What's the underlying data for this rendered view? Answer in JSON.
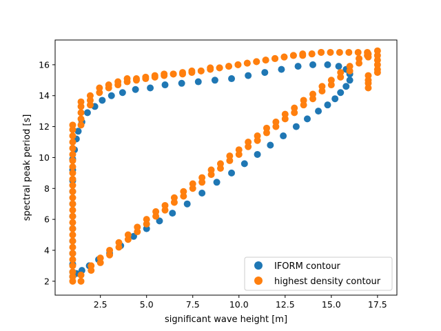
{
  "chart_data": {
    "type": "scatter",
    "xlabel": "significant wave height [m]",
    "ylabel": "spectral peak period [s]",
    "xlim": [
      0.05,
      18.55
    ],
    "ylim": [
      1.1,
      17.6
    ],
    "xticks": [
      "2.5",
      "5.0",
      "7.5",
      "10.0",
      "12.5",
      "15.0",
      "17.5"
    ],
    "yticks": [
      "2",
      "4",
      "6",
      "8",
      "10",
      "12",
      "14",
      "16"
    ],
    "legend_position": "lower-right",
    "series": [
      {
        "name": "IFORM contour",
        "color": "#1f77b4",
        "points": [
          [
            1.0,
            2.3
          ],
          [
            1.2,
            2.5
          ],
          [
            1.5,
            2.7
          ],
          [
            1.9,
            3.0
          ],
          [
            2.4,
            3.4
          ],
          [
            3.0,
            3.8
          ],
          [
            3.6,
            4.3
          ],
          [
            4.3,
            4.9
          ],
          [
            5.0,
            5.4
          ],
          [
            5.7,
            5.9
          ],
          [
            6.4,
            6.4
          ],
          [
            7.2,
            7.0
          ],
          [
            8.0,
            7.7
          ],
          [
            8.8,
            8.4
          ],
          [
            9.6,
            9.0
          ],
          [
            10.3,
            9.6
          ],
          [
            11.0,
            10.2
          ],
          [
            11.7,
            10.8
          ],
          [
            12.4,
            11.4
          ],
          [
            13.1,
            12.0
          ],
          [
            13.7,
            12.5
          ],
          [
            14.3,
            13.0
          ],
          [
            14.8,
            13.4
          ],
          [
            15.2,
            13.8
          ],
          [
            15.5,
            14.2
          ],
          [
            15.8,
            14.6
          ],
          [
            16.0,
            15.0
          ],
          [
            16.0,
            15.4
          ],
          [
            15.8,
            15.7
          ],
          [
            15.4,
            15.9
          ],
          [
            14.8,
            16.0
          ],
          [
            14.0,
            16.0
          ],
          [
            13.2,
            15.9
          ],
          [
            12.3,
            15.7
          ],
          [
            11.4,
            15.5
          ],
          [
            10.5,
            15.3
          ],
          [
            9.6,
            15.1
          ],
          [
            8.7,
            15.0
          ],
          [
            7.8,
            14.9
          ],
          [
            6.9,
            14.8
          ],
          [
            6.0,
            14.7
          ],
          [
            5.2,
            14.5
          ],
          [
            4.4,
            14.4
          ],
          [
            3.7,
            14.2
          ],
          [
            3.1,
            14.0
          ],
          [
            2.6,
            13.7
          ],
          [
            2.2,
            13.3
          ],
          [
            1.8,
            12.9
          ],
          [
            1.5,
            12.3
          ],
          [
            1.3,
            11.7
          ],
          [
            1.2,
            11.2
          ],
          [
            1.1,
            10.5
          ],
          [
            1.0,
            9.9
          ],
          [
            1.0,
            9.2
          ],
          [
            1.0,
            8.5
          ],
          [
            1.0,
            7.8
          ],
          [
            1.0,
            7.0
          ],
          [
            1.0,
            6.2
          ],
          [
            1.0,
            5.4
          ],
          [
            1.0,
            4.6
          ],
          [
            1.0,
            3.8
          ],
          [
            1.0,
            3.1
          ],
          [
            1.0,
            2.6
          ]
        ]
      },
      {
        "name": "highest density contour",
        "color": "#ff7f0e",
        "points": [
          [
            1.0,
            2.0
          ],
          [
            1.0,
            2.3
          ],
          [
            1.0,
            2.6
          ],
          [
            1.0,
            3.0
          ],
          [
            1.0,
            3.4
          ],
          [
            1.0,
            3.8
          ],
          [
            1.0,
            4.2
          ],
          [
            1.0,
            4.6
          ],
          [
            1.0,
            5.0
          ],
          [
            1.0,
            5.4
          ],
          [
            1.0,
            5.8
          ],
          [
            1.0,
            6.2
          ],
          [
            1.0,
            6.6
          ],
          [
            1.0,
            7.0
          ],
          [
            1.0,
            7.4
          ],
          [
            1.0,
            7.8
          ],
          [
            1.0,
            8.2
          ],
          [
            1.0,
            8.6
          ],
          [
            1.0,
            9.0
          ],
          [
            1.0,
            9.4
          ],
          [
            1.0,
            9.8
          ],
          [
            1.0,
            10.2
          ],
          [
            1.0,
            10.6
          ],
          [
            1.0,
            11.0
          ],
          [
            1.0,
            11.4
          ],
          [
            1.0,
            11.8
          ],
          [
            1.0,
            12.1
          ],
          [
            1.45,
            2.0
          ],
          [
            1.45,
            2.4
          ],
          [
            2.0,
            2.7
          ],
          [
            2.0,
            3.0
          ],
          [
            2.5,
            3.2
          ],
          [
            2.5,
            3.5
          ],
          [
            3.0,
            3.7
          ],
          [
            3.0,
            4.0
          ],
          [
            3.5,
            4.2
          ],
          [
            3.5,
            4.5
          ],
          [
            4.0,
            4.7
          ],
          [
            4.0,
            5.0
          ],
          [
            4.5,
            5.2
          ],
          [
            4.5,
            5.5
          ],
          [
            5.0,
            5.7
          ],
          [
            5.0,
            6.0
          ],
          [
            5.5,
            6.2
          ],
          [
            5.5,
            6.5
          ],
          [
            6.0,
            6.6
          ],
          [
            6.0,
            6.9
          ],
          [
            6.5,
            7.1
          ],
          [
            6.5,
            7.4
          ],
          [
            7.0,
            7.5
          ],
          [
            7.0,
            7.8
          ],
          [
            7.5,
            8.0
          ],
          [
            7.5,
            8.3
          ],
          [
            8.0,
            8.4
          ],
          [
            8.0,
            8.7
          ],
          [
            8.5,
            8.9
          ],
          [
            8.5,
            9.2
          ],
          [
            9.0,
            9.3
          ],
          [
            9.0,
            9.6
          ],
          [
            9.5,
            9.8
          ],
          [
            9.5,
            10.1
          ],
          [
            10.0,
            10.2
          ],
          [
            10.0,
            10.5
          ],
          [
            10.5,
            10.7
          ],
          [
            10.5,
            11.0
          ],
          [
            11.0,
            11.1
          ],
          [
            11.0,
            11.4
          ],
          [
            11.5,
            11.6
          ],
          [
            11.5,
            11.9
          ],
          [
            12.0,
            12.0
          ],
          [
            12.0,
            12.3
          ],
          [
            12.5,
            12.5
          ],
          [
            12.5,
            12.8
          ],
          [
            13.0,
            12.9
          ],
          [
            13.0,
            13.2
          ],
          [
            13.5,
            13.4
          ],
          [
            13.5,
            13.7
          ],
          [
            14.0,
            13.8
          ],
          [
            14.0,
            14.1
          ],
          [
            14.5,
            14.3
          ],
          [
            14.5,
            14.6
          ],
          [
            15.0,
            14.7
          ],
          [
            15.0,
            15.0
          ],
          [
            15.5,
            15.2
          ],
          [
            15.5,
            15.5
          ],
          [
            16.0,
            15.6
          ],
          [
            16.0,
            15.9
          ],
          [
            16.5,
            16.1
          ],
          [
            16.5,
            16.4
          ],
          [
            17.0,
            16.5
          ],
          [
            17.0,
            16.7
          ],
          [
            17.5,
            16.9
          ],
          [
            1.45,
            12.1
          ],
          [
            1.45,
            12.5
          ],
          [
            1.45,
            12.9
          ],
          [
            1.45,
            13.3
          ],
          [
            1.45,
            13.6
          ],
          [
            1.95,
            13.4
          ],
          [
            1.95,
            13.7
          ],
          [
            1.95,
            14.0
          ],
          [
            2.45,
            14.2
          ],
          [
            2.45,
            14.5
          ],
          [
            2.95,
            14.5
          ],
          [
            2.95,
            14.7
          ],
          [
            3.45,
            14.7
          ],
          [
            3.45,
            14.9
          ],
          [
            3.95,
            14.9
          ],
          [
            3.95,
            15.1
          ],
          [
            4.45,
            15.0
          ],
          [
            4.45,
            15.1
          ],
          [
            4.95,
            15.1
          ],
          [
            4.95,
            15.2
          ],
          [
            5.45,
            15.2
          ],
          [
            5.45,
            15.3
          ],
          [
            5.95,
            15.3
          ],
          [
            5.95,
            15.4
          ],
          [
            6.45,
            15.4
          ],
          [
            6.45,
            15.4
          ],
          [
            6.95,
            15.4
          ],
          [
            6.95,
            15.5
          ],
          [
            7.45,
            15.5
          ],
          [
            7.45,
            15.6
          ],
          [
            7.95,
            15.6
          ],
          [
            7.95,
            15.6
          ],
          [
            8.45,
            15.7
          ],
          [
            8.45,
            15.8
          ],
          [
            8.95,
            15.8
          ],
          [
            8.95,
            15.8
          ],
          [
            9.45,
            15.9
          ],
          [
            9.45,
            15.9
          ],
          [
            9.95,
            16.0
          ],
          [
            9.95,
            16.0
          ],
          [
            10.45,
            16.1
          ],
          [
            10.45,
            16.1
          ],
          [
            10.95,
            16.2
          ],
          [
            10.95,
            16.2
          ],
          [
            11.45,
            16.3
          ],
          [
            11.45,
            16.3
          ],
          [
            11.95,
            16.4
          ],
          [
            11.95,
            16.4
          ],
          [
            12.45,
            16.5
          ],
          [
            12.45,
            16.5
          ],
          [
            12.95,
            16.6
          ],
          [
            12.95,
            16.6
          ],
          [
            13.45,
            16.6
          ],
          [
            13.45,
            16.7
          ],
          [
            13.95,
            16.7
          ],
          [
            13.95,
            16.7
          ],
          [
            14.45,
            16.8
          ],
          [
            14.45,
            16.8
          ],
          [
            14.95,
            16.8
          ],
          [
            15.45,
            16.8
          ],
          [
            15.95,
            16.8
          ],
          [
            16.45,
            16.8
          ],
          [
            16.95,
            16.8
          ],
          [
            16.95,
            16.6
          ],
          [
            17.0,
            15.3
          ],
          [
            17.0,
            15.0
          ],
          [
            17.0,
            14.8
          ],
          [
            17.0,
            14.5
          ],
          [
            17.5,
            16.6
          ],
          [
            17.5,
            16.3
          ],
          [
            17.5,
            16.0
          ],
          [
            17.5,
            15.7
          ],
          [
            17.5,
            15.5
          ]
        ]
      }
    ]
  }
}
